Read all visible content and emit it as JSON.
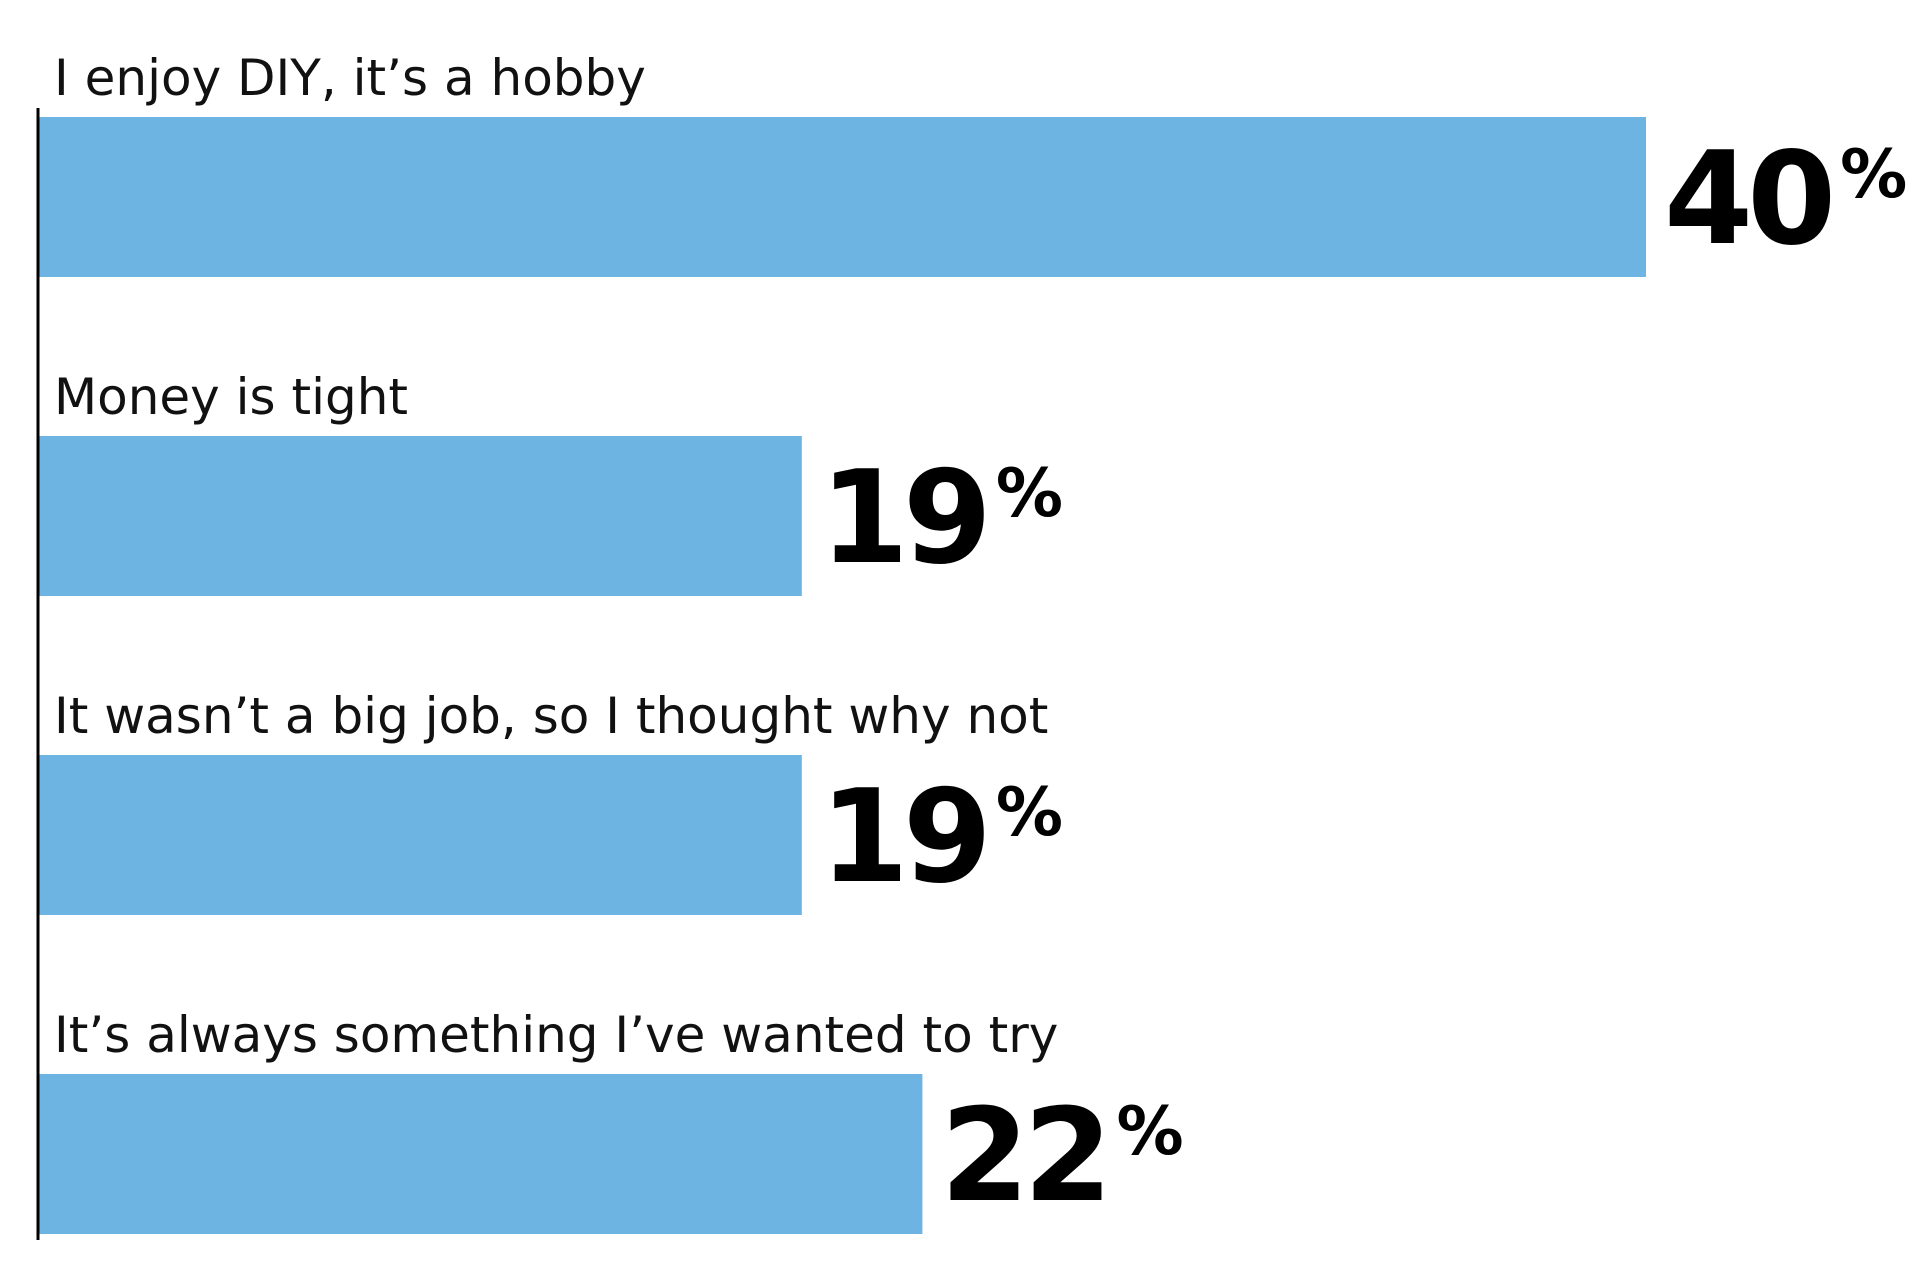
{
  "chart_data": {
    "type": "bar",
    "orientation": "horizontal",
    "categories": [
      "I enjoy DIY, it’s a hobby",
      "Money is tight",
      "It wasn’t a big job, so I thought why not",
      "It’s always something I’ve wanted to try"
    ],
    "values": [
      40,
      19,
      19,
      22
    ],
    "value_labels": [
      {
        "number": "40",
        "suffix": "%"
      },
      {
        "number": "19",
        "suffix": "%"
      },
      {
        "number": "19",
        "suffix": "%"
      },
      {
        "number": "22",
        "suffix": "%"
      }
    ],
    "xlim": [
      0,
      42
    ],
    "grid": false,
    "legend": "none",
    "bar_color": "#6EB4E2",
    "axis_color": "#000000",
    "text_color": "#111111"
  }
}
